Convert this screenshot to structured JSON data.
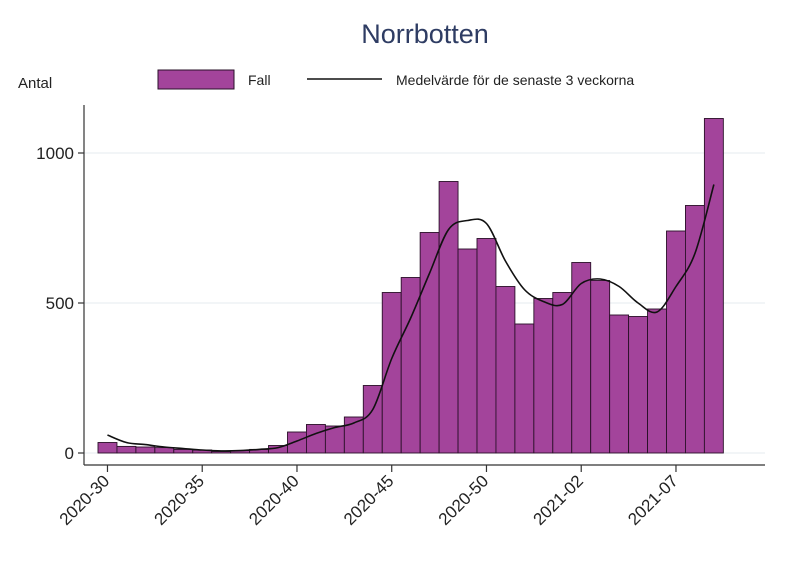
{
  "chart_data": {
    "type": "bar",
    "title": "Norrbotten",
    "ylabel": "Antal",
    "ylim": [
      0,
      1150
    ],
    "yticks": [
      0,
      500,
      1000
    ],
    "xticks": [
      "2020-30",
      "2020-35",
      "2020-40",
      "2020-45",
      "2020-50",
      "2021-02",
      "2021-07"
    ],
    "grid": true,
    "legend_position": "top",
    "colors": {
      "bar": "#a3449b",
      "bar_edge": "#2a1028",
      "line": "#111111",
      "grid": "#e6ebef",
      "axis": "#333333"
    },
    "series": [
      {
        "name": "Fall",
        "type": "bar",
        "categories": [
          "2020-30",
          "2020-31",
          "2020-32",
          "2020-33",
          "2020-34",
          "2020-35",
          "2020-36",
          "2020-37",
          "2020-38",
          "2020-39",
          "2020-40",
          "2020-41",
          "2020-42",
          "2020-43",
          "2020-44",
          "2020-45",
          "2020-46",
          "2020-47",
          "2020-48",
          "2020-49",
          "2020-50",
          "2020-51",
          "2020-52",
          "2020-53",
          "2021-01",
          "2021-02",
          "2021-03",
          "2021-04",
          "2021-05",
          "2021-06",
          "2021-07",
          "2021-08",
          "2021-09"
        ],
        "values": [
          35,
          22,
          20,
          18,
          12,
          10,
          5,
          8,
          12,
          25,
          70,
          95,
          90,
          120,
          225,
          535,
          585,
          735,
          905,
          680,
          715,
          555,
          430,
          515,
          535,
          635,
          575,
          460,
          455,
          480,
          740,
          825,
          1115
        ]
      },
      {
        "name": "Medelvärde för de senaste 3 veckorna",
        "type": "line",
        "values": [
          60,
          35,
          28,
          20,
          15,
          10,
          7,
          8,
          12,
          18,
          40,
          65,
          85,
          100,
          145,
          315,
          450,
          600,
          745,
          775,
          765,
          640,
          545,
          505,
          495,
          565,
          580,
          555,
          500,
          470,
          555,
          665,
          895
        ]
      }
    ]
  }
}
